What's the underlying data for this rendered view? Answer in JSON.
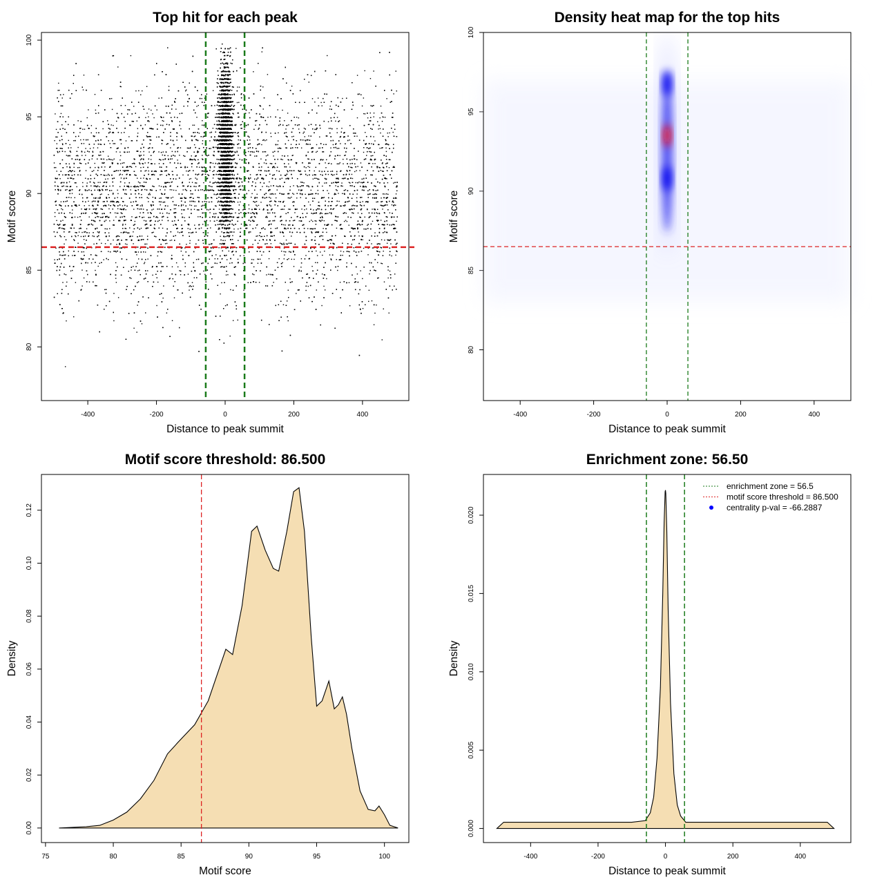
{
  "chart_data": [
    {
      "id": "p1",
      "type": "scatter",
      "title": "Top hit for each peak",
      "xlabel": "Distance to peak summit",
      "ylabel": "Motif score",
      "xlim": [
        -535,
        535
      ],
      "ylim": [
        76.5,
        100.5
      ],
      "xticks": [
        -400,
        -200,
        0,
        200,
        400
      ],
      "yticks": [
        80,
        85,
        90,
        95,
        100
      ],
      "points_summary": {
        "background": {
          "x_range": [
            -500,
            500
          ],
          "y_range": [
            77,
            100
          ],
          "dense_y_range": [
            83,
            97.5
          ]
        },
        "central_cluster": {
          "x_range": [
            -30,
            30
          ],
          "y_range": [
            84,
            100
          ]
        }
      },
      "vlines": [
        {
          "x": -56.5,
          "color": "#1a7a1a"
        },
        {
          "x": 56.5,
          "color": "#1a7a1a"
        }
      ],
      "hlines": [
        {
          "y": 86.5,
          "color": "#dd2222"
        }
      ],
      "colors": {
        "points": "#000000"
      }
    },
    {
      "id": "p2",
      "type": "heatmap",
      "title": "Density heat map for the top hits",
      "xlabel": "Distance to peak summit",
      "ylabel": "Motif score",
      "xlim": [
        -500,
        500
      ],
      "ylim": [
        76.8,
        100
      ],
      "xticks": [
        -400,
        -200,
        0,
        200,
        400
      ],
      "yticks": [
        80,
        85,
        90,
        95,
        100
      ],
      "hotspots": [
        {
          "x": 0,
          "y": 93.5,
          "level": "max",
          "color": "#ff1010"
        },
        {
          "x": 0,
          "y": 90.8,
          "level": "high",
          "color": "#0000ee"
        },
        {
          "x": 0,
          "y": 96.8,
          "level": "high",
          "color": "#0000ee"
        }
      ],
      "vlines": [
        {
          "x": -56.5,
          "color": "#1a7a1a"
        },
        {
          "x": 56.5,
          "color": "#1a7a1a"
        }
      ],
      "hlines": [
        {
          "y": 86.5,
          "color": "#dd2222"
        }
      ],
      "colors": {
        "low": "#ffffff",
        "mid": "#0000ee",
        "high": "#ff1010"
      }
    },
    {
      "id": "p3",
      "type": "area",
      "title": "Motif score threshold: 86.500",
      "xlabel": "Motif score",
      "ylabel": "Density",
      "xlim": [
        74.7,
        101.8
      ],
      "ylim": [
        -0.0055,
        0.1335
      ],
      "xticks": [
        75,
        80,
        85,
        90,
        95,
        100
      ],
      "yticks": [
        0.0,
        0.02,
        0.04,
        0.06,
        0.08,
        0.1,
        0.12
      ],
      "ytick_labels": [
        "0.00",
        "0.02",
        "0.04",
        "0.06",
        "0.08",
        "0.10",
        "0.12"
      ],
      "x": [
        76,
        78,
        79,
        80,
        81,
        82,
        83,
        84,
        84.8,
        86,
        87,
        87.8,
        88.3,
        88.8,
        89.5,
        90.2,
        90.6,
        91.2,
        91.8,
        92.2,
        92.8,
        93.3,
        93.7,
        94.1,
        94.6,
        95.0,
        95.4,
        95.9,
        96.3,
        96.6,
        96.9,
        97.2,
        97.6,
        98.2,
        98.8,
        99.3,
        99.6,
        100.0,
        100.4,
        101.0
      ],
      "y": [
        0.0,
        0.0005,
        0.001,
        0.003,
        0.006,
        0.011,
        0.018,
        0.028,
        0.0325,
        0.039,
        0.048,
        0.06,
        0.0675,
        0.0655,
        0.084,
        0.112,
        0.114,
        0.105,
        0.098,
        0.097,
        0.112,
        0.127,
        0.1285,
        0.112,
        0.072,
        0.046,
        0.048,
        0.0555,
        0.045,
        0.0465,
        0.0495,
        0.043,
        0.03,
        0.014,
        0.007,
        0.0065,
        0.0083,
        0.005,
        0.001,
        0.0
      ],
      "vlines": [
        {
          "x": 86.5,
          "color": "#dd2222"
        }
      ],
      "colors": {
        "fill": "#f5deb3",
        "line": "#000000"
      }
    },
    {
      "id": "p4",
      "type": "area",
      "title": "Enrichment zone: 56.50",
      "xlabel": "Distance to peak summit",
      "ylabel": "Density",
      "xlim": [
        -540,
        550
      ],
      "ylim": [
        -0.0009,
        0.0226
      ],
      "xticks": [
        -400,
        -200,
        0,
        200,
        400
      ],
      "yticks": [
        0.0,
        0.005,
        0.01,
        0.015,
        0.02
      ],
      "ytick_labels": [
        "0.000",
        "0.005",
        "0.010",
        "0.015",
        "0.020"
      ],
      "x": [
        -500,
        -480,
        -400,
        -300,
        -200,
        -100,
        -60,
        -45,
        -35,
        -25,
        -15,
        -8,
        -4,
        -1,
        0,
        1,
        4,
        8,
        15,
        25,
        35,
        45,
        60,
        100,
        200,
        300,
        400,
        480,
        500
      ],
      "y": [
        0.0,
        0.0004,
        0.0004,
        0.0004,
        0.0004,
        0.0004,
        0.0005,
        0.001,
        0.002,
        0.0045,
        0.009,
        0.015,
        0.0195,
        0.0215,
        0.0216,
        0.0214,
        0.019,
        0.014,
        0.008,
        0.0035,
        0.0015,
        0.0008,
        0.0004,
        0.0004,
        0.0004,
        0.0004,
        0.0004,
        0.0004,
        0.0
      ],
      "vlines": [
        {
          "x": -56.5,
          "color": "#1a7a1a"
        },
        {
          "x": 56.5,
          "color": "#1a7a1a"
        }
      ],
      "legend": {
        "position": "top-right",
        "entries": [
          {
            "label": "enrichment zone = 56.5",
            "style": "dotted-line",
            "color": "#1a7a1a"
          },
          {
            "label": "motif score threshold = 86.500",
            "style": "dotted-line",
            "color": "#dd2222"
          },
          {
            "label": "centrality p-val = -66.2887",
            "style": "point",
            "color": "#0000ff"
          }
        ]
      },
      "colors": {
        "fill": "#f5deb3",
        "line": "#000000"
      }
    }
  ]
}
